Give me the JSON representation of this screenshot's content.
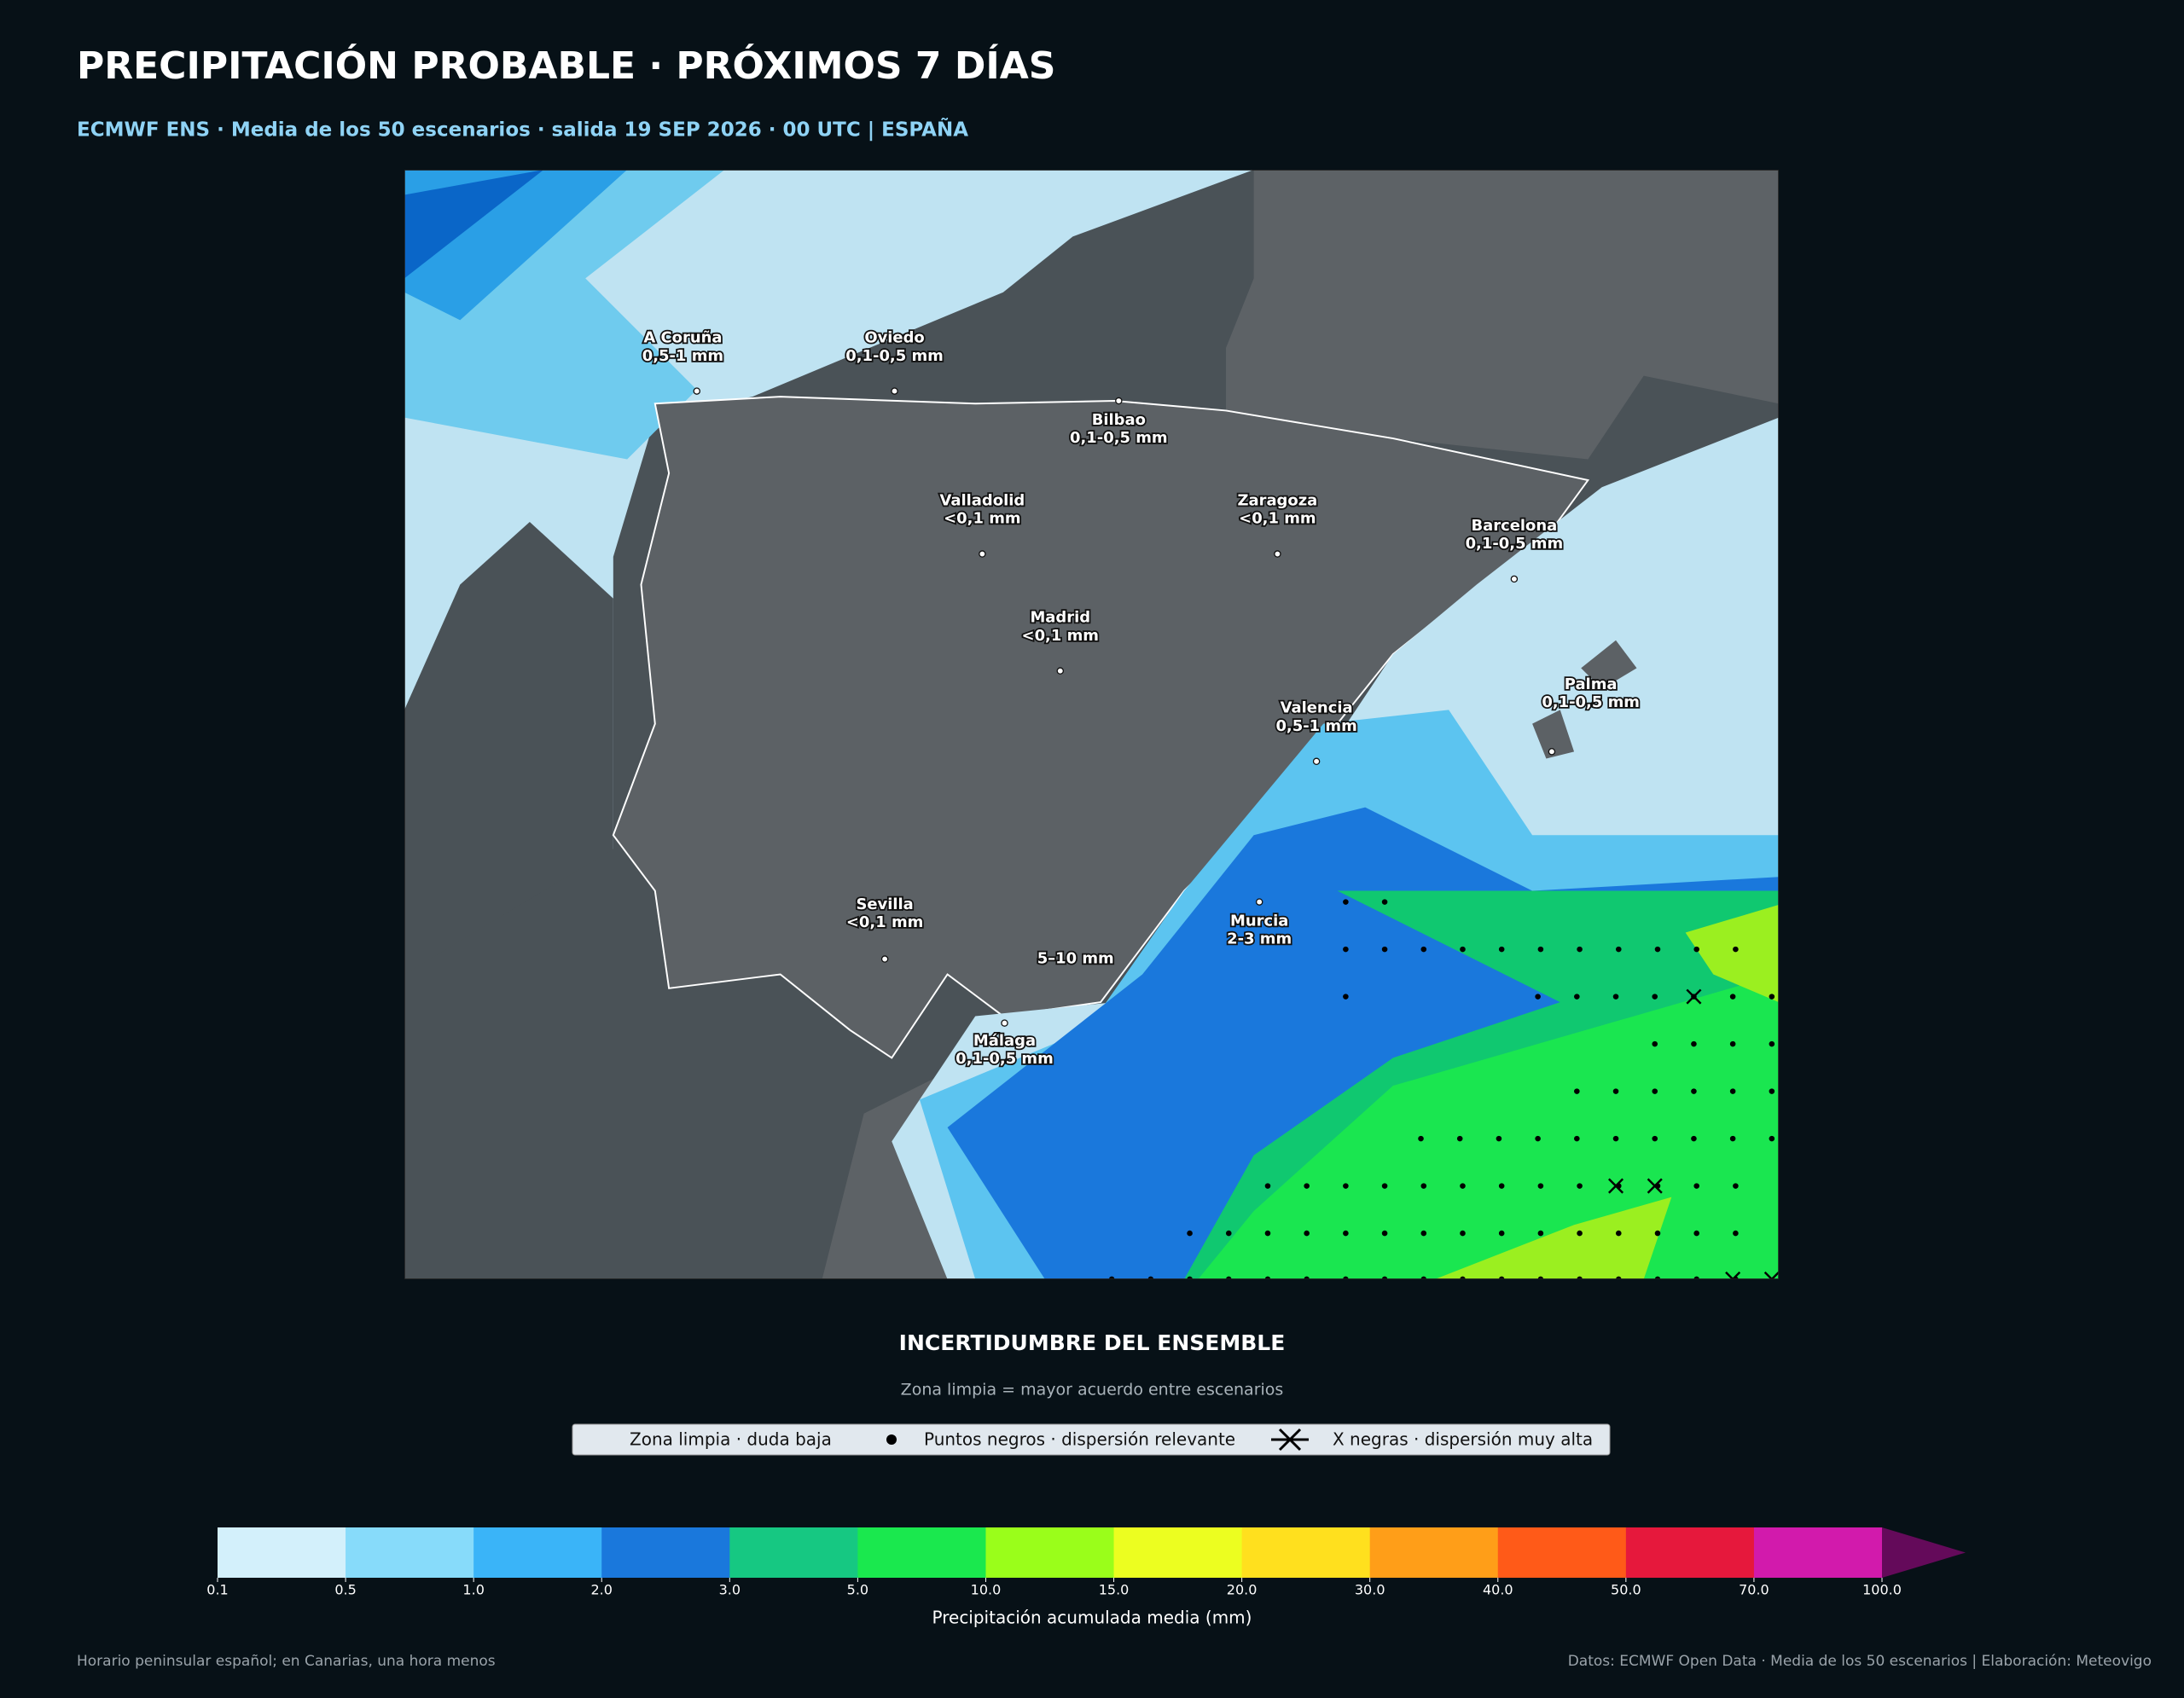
{
  "header": {
    "title": "PRECIPITACIÓN PROBABLE · PRÓXIMOS 7 DÍAS",
    "subtitle": "ECMWF ENS · Media de los 50 escenarios · salida 19 SEP 2026 · 00 UTC | ESPAÑA"
  },
  "map": {
    "cities": [
      {
        "name": "A Coruña",
        "value": "0,5-1 mm"
      },
      {
        "name": "Oviedo",
        "value": "0,1-0,5 mm"
      },
      {
        "name": "Bilbao",
        "value": "0,1-0,5 mm"
      },
      {
        "name": "Valladolid",
        "value": "<0,1 mm"
      },
      {
        "name": "Zaragoza",
        "value": "<0,1 mm"
      },
      {
        "name": "Barcelona",
        "value": "0,1-0,5 mm"
      },
      {
        "name": "Madrid",
        "value": "<0,1 mm"
      },
      {
        "name": "Palma",
        "value": "0,1-0,5 mm"
      },
      {
        "name": "Valencia",
        "value": "0,5-1 mm"
      },
      {
        "name": "Murcia",
        "value": "2-3 mm"
      },
      {
        "name": "Sevilla",
        "value": "<0,1 mm"
      },
      {
        "name": "Málaga",
        "value": "0,1-0,5 mm"
      }
    ],
    "highlight": "5–10 mm"
  },
  "uncertainty": {
    "title": "INCERTIDUMBRE DEL ENSEMBLE",
    "subtitle": "Zona limpia = mayor acuerdo entre escenarios",
    "legend": [
      "Zona limpia · duda baja",
      "Puntos negros · dispersión relevante",
      "X negras · dispersión muy alta"
    ]
  },
  "colorbar": {
    "ticks": [
      0.1,
      0.5,
      {
        "value": 1,
        "label": "1.0"
      },
      {
        "value": 2,
        "label": "2.0"
      },
      {
        "value": 3,
        "label": "3.0"
      },
      {
        "value": 5,
        "label": "5.0"
      },
      {
        "value": 10,
        "label": "10.0"
      },
      {
        "value": 15,
        "label": "15.0"
      },
      {
        "value": 20,
        "label": "20.0"
      },
      {
        "value": 30,
        "label": "30.0"
      },
      {
        "value": 40,
        "label": "40.0"
      },
      {
        "value": 50,
        "label": "50.0"
      },
      {
        "value": 70,
        "label": "70.0"
      },
      {
        "value": 100,
        "label": "100.0"
      }
    ],
    "colors": [
      "#d3f0fb",
      "#87dbfa",
      "#3ab4f8",
      "#1a78dc",
      "#16c882",
      "#1ae84e",
      "#9afe1a",
      "#ecfe20",
      "#ffe01e",
      "#ff9e18",
      "#ff5a18",
      "#e6183c",
      "#d21aac"
    ],
    "extend_color": "#640a5a",
    "label": "Precipitación acumulada media (mm)"
  },
  "footer": {
    "left": "Horario peninsular español; en Canarias, una hora menos",
    "right": "Datos: ECMWF Open Data · Media de los 50 escenarios | Elaboración: Meteovigo"
  }
}
